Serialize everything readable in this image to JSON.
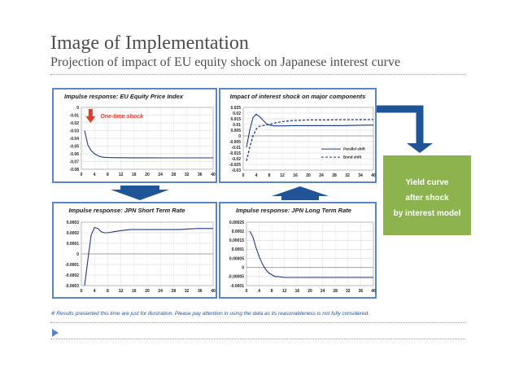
{
  "header": {
    "title": "Image of Implementation",
    "subtitle": "Projection of impact of EU equity shock on Japanese interest curve"
  },
  "callout": {
    "lines": [
      "Yield curve",
      "after shock",
      "by interest model"
    ],
    "color": "#8db34f"
  },
  "colors": {
    "panel_border": "#5b86c6",
    "arrow": "#1f5596",
    "series": "#1f3b8c",
    "annotation": "#e53b2c"
  },
  "footnote": "※ Results presented this time are just for illustration.  Please pay attention in using the data as its reasonableness is not fully considered.",
  "chart_data": [
    {
      "type": "line",
      "title": "Impulse response: EU Equity Price Index",
      "annotation": "One-time shock",
      "xlim": [
        0,
        40
      ],
      "ylim": [
        -0.08,
        0
      ],
      "xticks": [
        "0",
        "4",
        "8",
        "12",
        "16",
        "20",
        "24",
        "28",
        "32",
        "36",
        "40"
      ],
      "yticks": [
        "0",
        "-0.01",
        "-0.02",
        "-0.03",
        "-0.04",
        "-0.05",
        "-0.06",
        "-0.07",
        "-0.08"
      ],
      "series": [
        {
          "x": [
            1,
            2,
            3,
            4,
            5,
            6,
            7,
            8,
            10,
            12,
            15,
            18,
            20,
            25,
            30,
            35,
            40
          ],
          "values": [
            -0.03,
            -0.049,
            -0.056,
            -0.06,
            -0.0625,
            -0.064,
            -0.0645,
            -0.0648,
            -0.065,
            -0.065,
            -0.0652,
            -0.0652,
            -0.0652,
            -0.0653,
            -0.0653,
            -0.0653,
            -0.0653
          ]
        }
      ]
    },
    {
      "type": "line",
      "title": "Impact of interest shock on major components",
      "xlim": [
        0,
        40
      ],
      "ylim": [
        -0.03,
        0.025
      ],
      "xticks": [
        "0",
        "4",
        "8",
        "12",
        "16",
        "20",
        "24",
        "28",
        "32",
        "34",
        "40"
      ],
      "yticks": [
        "0.025",
        "0.02",
        "0.015",
        "0.01",
        "0.005",
        "0",
        "-0.005",
        "-0.01",
        "-0.015",
        "-0.02",
        "-0.025",
        "-0.03"
      ],
      "series": [
        {
          "name": "Parallel shift",
          "style": "solid",
          "x": [
            1,
            2,
            3,
            4,
            5,
            6,
            7,
            8,
            9,
            10,
            12,
            15,
            20,
            25,
            30,
            35,
            40
          ],
          "values": [
            -0.01,
            0.005,
            0.016,
            0.019,
            0.017,
            0.014,
            0.011,
            0.0095,
            0.009,
            0.0088,
            0.0088,
            0.009,
            0.009,
            0.009,
            0.009,
            0.0092,
            0.0095
          ]
        },
        {
          "name": "Bond shift",
          "style": "dashed",
          "x": [
            1,
            2,
            3,
            4,
            5,
            6,
            7,
            8,
            10,
            12,
            15,
            20,
            25,
            30,
            35,
            40
          ],
          "values": [
            -0.022,
            -0.01,
            0.0,
            0.006,
            0.0085,
            0.009,
            0.0095,
            0.01,
            0.0115,
            0.0125,
            0.0135,
            0.014,
            0.014,
            0.0142,
            0.0142,
            0.0143
          ]
        }
      ]
    },
    {
      "type": "line",
      "title": "Impulse response: JPN Short Term Rate",
      "xlim": [
        0,
        40
      ],
      "ylim": [
        -0.0003,
        0.0003
      ],
      "xticks": [
        "0",
        "4",
        "8",
        "12",
        "16",
        "20",
        "24",
        "28",
        "32",
        "36",
        "40"
      ],
      "yticks": [
        "0.0003",
        "0.0002",
        "0.0001",
        "0",
        "-0.0001",
        "-0.0002",
        "-0.0003"
      ],
      "series": [
        {
          "x": [
            1,
            2,
            3,
            4,
            5,
            6,
            7,
            8,
            10,
            12,
            15,
            20,
            25,
            30,
            35,
            40
          ],
          "values": [
            -0.0003,
            -5e-05,
            0.00018,
            0.00025,
            0.00024,
            0.00021,
            0.0002,
            0.0002,
            0.00021,
            0.00022,
            0.00023,
            0.00023,
            0.00023,
            0.00023,
            0.00024,
            0.00024
          ]
        }
      ]
    },
    {
      "type": "line",
      "title": "Impulse response: JPN Long Term Rate",
      "xlim": [
        0,
        40
      ],
      "ylim": [
        -0.0001,
        0.00025
      ],
      "xticks": [
        "0",
        "4",
        "8",
        "12",
        "16",
        "20",
        "24",
        "28",
        "32",
        "36",
        "40"
      ],
      "yticks": [
        "0.00025",
        "0.0002",
        "0.00015",
        "0.0001",
        "0.00005",
        "0",
        "-0.00005",
        "-0.0001"
      ],
      "series": [
        {
          "x": [
            1,
            2,
            3,
            4,
            5,
            6,
            7,
            8,
            9,
            10,
            12,
            15,
            20,
            25,
            30,
            35,
            40
          ],
          "values": [
            0.0002,
            0.00017,
            0.00011,
            6e-05,
            2e-05,
            -1e-05,
            -3e-05,
            -4e-05,
            -5e-05,
            -5e-05,
            -5.5e-05,
            -5.5e-05,
            -5.5e-05,
            -5.5e-05,
            -5.5e-05,
            -5.5e-05,
            -5.5e-05
          ]
        }
      ]
    }
  ]
}
